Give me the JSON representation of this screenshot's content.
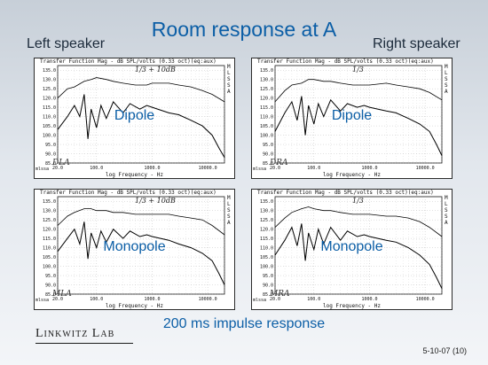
{
  "title": "Room response at A",
  "left_label": "Left speaker",
  "right_label": "Right speaker",
  "subtitle": "200 ms impulse response",
  "brand": "Linkwitz Lab",
  "date": "5-10-07 (10)",
  "colors": {
    "accent": "#0b5ea6",
    "trace": "#000000"
  },
  "panels": [
    {
      "header": "Transfer Function Mag - dB SPL/volts (0.33 oct)(eq:aux)",
      "label": "Dipole",
      "id": "DLA",
      "note": "1/3 + 10dB",
      "xlabel": "log Frequency - Hz",
      "corner": "mlssa",
      "side": "MLSSA"
    },
    {
      "header": "Transfer Function Mag - dB SPL/volts (0.33 oct)(eq:aux)",
      "label": "Dipole",
      "id": "DRA",
      "note": "1/3",
      "xlabel": "log Frequency - Hz",
      "corner": "mlssa",
      "side": "MLSSA"
    },
    {
      "header": "Transfer Function Mag - dB SPL/volts (0.33 oct)(eq:aux)",
      "label": "Monopole",
      "id": "MLA",
      "note": "1/3 + 10dB",
      "xlabel": "log Frequency - Hz",
      "corner": "mlssa",
      "side": "MLSSA"
    },
    {
      "header": "Transfer Function Mag - dB SPL/volts (0.33 oct)(eq:aux)",
      "label": "Monopole",
      "id": "MRA",
      "note": "1/3",
      "xlabel": "log Frequency - Hz",
      "corner": "mlssa",
      "side": "MLSSA"
    }
  ],
  "chart_data": [
    {
      "type": "line",
      "title": "Transfer Function Mag - dB SPL/volts (0.33 oct)(eq:aux)",
      "xlabel": "log Frequency - Hz",
      "ylabel": "",
      "xscale": "log",
      "xlim": [
        20,
        20000
      ],
      "ylim": [
        85,
        137.5
      ],
      "xticks": [
        20,
        100,
        1000,
        10000
      ],
      "xtick_labels": [
        "20.0",
        "100.0",
        "1000.0",
        "10000.0"
      ],
      "yticks": [
        85,
        90,
        95,
        100,
        105,
        110,
        115,
        120,
        125,
        130,
        135
      ],
      "ytick_labels": [
        "85.0",
        "90.0",
        "95.0",
        "100.0",
        "105.0",
        "110.0",
        "115.0",
        "120.0",
        "125.0",
        "130.0",
        "135.0"
      ],
      "grid": true,
      "series": [
        {
          "x": [
            20,
            30,
            40,
            60,
            80,
            100,
            150,
            200,
            300,
            500,
            800,
            1000,
            2000,
            3000,
            5000,
            8000,
            12000,
            20000
          ],
          "y": [
            120,
            125,
            126,
            129,
            130,
            131,
            130,
            129,
            128,
            127,
            127,
            128,
            128,
            127,
            126,
            124,
            122,
            118
          ]
        },
        {
          "x": [
            20,
            30,
            40,
            50,
            60,
            70,
            80,
            100,
            120,
            150,
            200,
            300,
            400,
            600,
            800,
            1000,
            2000,
            3000,
            5000,
            8000,
            12000,
            16000,
            20000
          ],
          "y": [
            103,
            110,
            116,
            110,
            122,
            98,
            114,
            104,
            116,
            109,
            118,
            112,
            117,
            114,
            116,
            115,
            112,
            111,
            108,
            105,
            100,
            93,
            88
          ]
        }
      ]
    },
    {
      "type": "line",
      "title": "Transfer Function Mag - dB SPL/volts (0.33 oct)(eq:aux)",
      "xlabel": "log Frequency - Hz",
      "ylabel": "",
      "xscale": "log",
      "xlim": [
        20,
        20000
      ],
      "ylim": [
        85,
        137.5
      ],
      "xticks": [
        20,
        100,
        1000,
        10000
      ],
      "xtick_labels": [
        "20.0",
        "100.0",
        "1000.0",
        "10000.0"
      ],
      "yticks": [
        85,
        90,
        95,
        100,
        105,
        110,
        115,
        120,
        125,
        130,
        135
      ],
      "ytick_labels": [
        "85.0",
        "90.0",
        "95.0",
        "100.0",
        "105.0",
        "110.0",
        "115.0",
        "120.0",
        "125.0",
        "130.0",
        "135.0"
      ],
      "grid": true,
      "series": [
        {
          "x": [
            20,
            30,
            40,
            60,
            80,
            100,
            150,
            200,
            300,
            500,
            800,
            1000,
            2000,
            3000,
            5000,
            8000,
            12000,
            20000
          ],
          "y": [
            118,
            124,
            127,
            128,
            130,
            130,
            129,
            129,
            128,
            127,
            127,
            127,
            128,
            127,
            126,
            125,
            123,
            119
          ]
        },
        {
          "x": [
            20,
            30,
            40,
            50,
            60,
            70,
            80,
            100,
            120,
            150,
            200,
            300,
            400,
            600,
            800,
            1000,
            2000,
            3000,
            5000,
            8000,
            12000,
            16000,
            20000
          ],
          "y": [
            102,
            112,
            118,
            108,
            121,
            100,
            116,
            106,
            117,
            110,
            119,
            113,
            117,
            115,
            116,
            115,
            113,
            112,
            109,
            106,
            102,
            95,
            89
          ]
        }
      ]
    },
    {
      "type": "line",
      "title": "Transfer Function Mag - dB SPL/volts (0.33 oct)(eq:aux)",
      "xlabel": "log Frequency - Hz",
      "ylabel": "",
      "xscale": "log",
      "xlim": [
        20,
        20000
      ],
      "ylim": [
        85,
        137.5
      ],
      "xticks": [
        20,
        100,
        1000,
        10000
      ],
      "xtick_labels": [
        "20.0",
        "100.0",
        "1000.0",
        "10000.0"
      ],
      "yticks": [
        85,
        90,
        95,
        100,
        105,
        110,
        115,
        120,
        125,
        130,
        135
      ],
      "ytick_labels": [
        "85.0",
        "90.0",
        "95.0",
        "100.0",
        "105.0",
        "110.0",
        "115.0",
        "120.0",
        "125.0",
        "130.0",
        "135.0"
      ],
      "grid": true,
      "series": [
        {
          "x": [
            20,
            30,
            40,
            60,
            80,
            100,
            150,
            200,
            300,
            500,
            800,
            1000,
            2000,
            3000,
            5000,
            8000,
            12000,
            20000
          ],
          "y": [
            122,
            127,
            129,
            131,
            131,
            130,
            130,
            129,
            129,
            128,
            128,
            128,
            128,
            127,
            126,
            125,
            122,
            117
          ]
        },
        {
          "x": [
            20,
            30,
            40,
            50,
            60,
            70,
            80,
            100,
            120,
            150,
            200,
            300,
            400,
            600,
            800,
            1000,
            2000,
            3000,
            5000,
            8000,
            12000,
            16000,
            20000
          ],
          "y": [
            108,
            115,
            120,
            112,
            124,
            104,
            118,
            110,
            119,
            113,
            120,
            115,
            119,
            116,
            117,
            116,
            114,
            112,
            110,
            107,
            103,
            96,
            90
          ]
        }
      ]
    },
    {
      "type": "line",
      "title": "Transfer Function Mag - dB SPL/volts (0.33 oct)(eq:aux)",
      "xlabel": "log Frequency - Hz",
      "ylabel": "",
      "xscale": "log",
      "xlim": [
        20,
        20000
      ],
      "ylim": [
        85,
        137.5
      ],
      "xticks": [
        20,
        100,
        1000,
        10000
      ],
      "xtick_labels": [
        "20.0",
        "100.0",
        "1000.0",
        "10000.0"
      ],
      "yticks": [
        85,
        90,
        95,
        100,
        105,
        110,
        115,
        120,
        125,
        130,
        135
      ],
      "ytick_labels": [
        "85.0",
        "90.0",
        "95.0",
        "100.0",
        "105.0",
        "110.0",
        "115.0",
        "120.0",
        "125.0",
        "130.0",
        "135.0"
      ],
      "grid": true,
      "series": [
        {
          "x": [
            20,
            30,
            40,
            60,
            80,
            100,
            150,
            200,
            300,
            500,
            800,
            1000,
            2000,
            3000,
            5000,
            8000,
            12000,
            20000
          ],
          "y": [
            121,
            126,
            129,
            131,
            132,
            131,
            130,
            130,
            129,
            128,
            128,
            128,
            127,
            127,
            126,
            124,
            121,
            116
          ]
        },
        {
          "x": [
            20,
            30,
            40,
            50,
            60,
            70,
            80,
            100,
            120,
            150,
            200,
            300,
            400,
            600,
            800,
            1000,
            2000,
            3000,
            5000,
            8000,
            12000,
            16000,
            20000
          ],
          "y": [
            106,
            114,
            121,
            111,
            123,
            103,
            118,
            109,
            120,
            112,
            121,
            114,
            119,
            116,
            117,
            116,
            114,
            113,
            110,
            106,
            101,
            94,
            88
          ]
        }
      ]
    }
  ]
}
